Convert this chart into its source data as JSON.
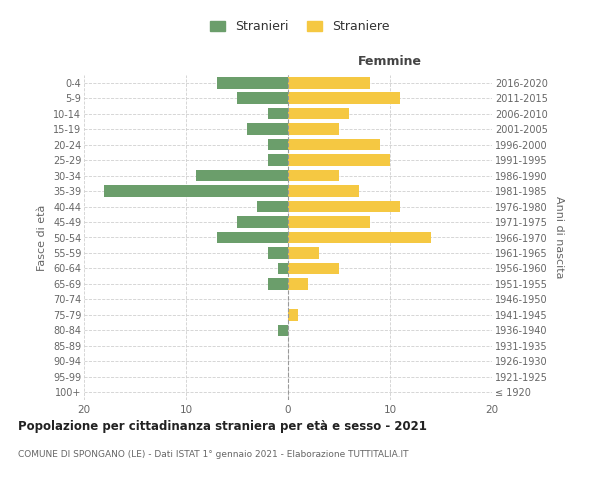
{
  "age_groups": [
    "100+",
    "95-99",
    "90-94",
    "85-89",
    "80-84",
    "75-79",
    "70-74",
    "65-69",
    "60-64",
    "55-59",
    "50-54",
    "45-49",
    "40-44",
    "35-39",
    "30-34",
    "25-29",
    "20-24",
    "15-19",
    "10-14",
    "5-9",
    "0-4"
  ],
  "birth_years": [
    "≤ 1920",
    "1921-1925",
    "1926-1930",
    "1931-1935",
    "1936-1940",
    "1941-1945",
    "1946-1950",
    "1951-1955",
    "1956-1960",
    "1961-1965",
    "1966-1970",
    "1971-1975",
    "1976-1980",
    "1981-1985",
    "1986-1990",
    "1991-1995",
    "1996-2000",
    "2001-2005",
    "2006-2010",
    "2011-2015",
    "2016-2020"
  ],
  "males": [
    0,
    0,
    0,
    0,
    1,
    0,
    0,
    2,
    1,
    2,
    7,
    5,
    3,
    18,
    9,
    2,
    2,
    4,
    2,
    5,
    7
  ],
  "females": [
    0,
    0,
    0,
    0,
    0,
    1,
    0,
    2,
    5,
    3,
    14,
    8,
    11,
    7,
    5,
    10,
    9,
    5,
    6,
    11,
    8
  ],
  "male_color": "#6b9e6b",
  "female_color": "#f5c842",
  "title": "Popolazione per cittadinanza straniera per età e sesso - 2021",
  "subtitle": "COMUNE DI SPONGANO (LE) - Dati ISTAT 1° gennaio 2021 - Elaborazione TUTTITALIA.IT",
  "xlabel_right": "Femmine",
  "ylabel_left": "Fasce di età",
  "ylabel_right": "Anni di nascita",
  "legend_males": "Stranieri",
  "legend_females": "Straniere",
  "xlim": 20,
  "bg_color": "#ffffff",
  "grid_color": "#d0d0d0",
  "bar_height": 0.75
}
